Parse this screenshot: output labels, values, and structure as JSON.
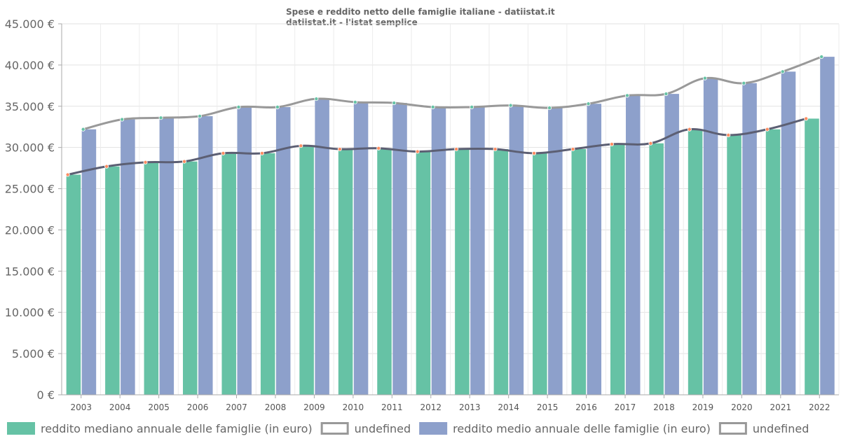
{
  "chart_data": {
    "type": "bar",
    "title": "Spese e reddito netto delle famiglie italiane - datiistat.it",
    "subtitle": "datiistat.it - l'istat semplice",
    "xlabel": "",
    "ylabel": "",
    "ylim": [
      0,
      45000
    ],
    "ytick_values": [
      0,
      5000,
      10000,
      15000,
      20000,
      25000,
      30000,
      35000,
      40000,
      45000
    ],
    "ytick_labels": [
      "0 €",
      "5.000 €",
      "10.000 €",
      "15.000 €",
      "20.000 €",
      "25.000 €",
      "30.000 €",
      "35.000 €",
      "40.000 €",
      "45.000 €"
    ],
    "grid": true,
    "legend_position": "bottom",
    "categories": [
      "2003",
      "2004",
      "2005",
      "2006",
      "2007",
      "2008",
      "2009",
      "2010",
      "2011",
      "2012",
      "2013",
      "2014",
      "2015",
      "2016",
      "2017",
      "2018",
      "2019",
      "2020",
      "2021",
      "2022"
    ],
    "series": [
      {
        "name": "reddito mediano annuale delle famiglie (in euro)",
        "kind": "bar",
        "color": "#66c2a5",
        "values": [
          26700,
          27700,
          28200,
          28300,
          29300,
          29300,
          30200,
          29800,
          29900,
          29500,
          29800,
          29800,
          29300,
          29800,
          30400,
          30500,
          32200,
          31500,
          32200,
          33500
        ]
      },
      {
        "name": "undefined",
        "kind": "line",
        "color": "#5c5f73",
        "marker_color": "#fc8d62",
        "values": [
          26700,
          27700,
          28200,
          28300,
          29300,
          29300,
          30200,
          29800,
          29900,
          29500,
          29800,
          29800,
          29300,
          29800,
          30400,
          30500,
          32200,
          31500,
          32200,
          33500
        ]
      },
      {
        "name": "reddito medio annuale delle famiglie (in euro)",
        "kind": "bar",
        "color": "#8da0cb",
        "values": [
          32200,
          33400,
          33600,
          33800,
          34900,
          34900,
          35900,
          35500,
          35400,
          34900,
          34900,
          35100,
          34800,
          35300,
          36300,
          36500,
          38400,
          37800,
          39200,
          41000
        ]
      },
      {
        "name": "undefined",
        "kind": "line",
        "color": "#999999",
        "marker_color": "#66c2a5",
        "values": [
          32200,
          33400,
          33600,
          33800,
          34900,
          34900,
          35900,
          35500,
          35400,
          34900,
          34900,
          35100,
          34800,
          35300,
          36300,
          36500,
          38400,
          37800,
          39200,
          41000
        ]
      }
    ]
  }
}
